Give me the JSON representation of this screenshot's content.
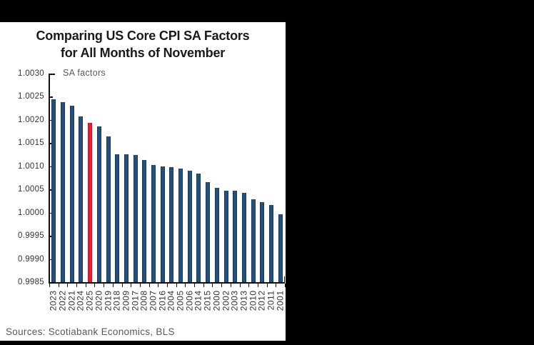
{
  "header": {
    "title_line1": "Comparing US Core CPI SA Factors",
    "title_line2": "for All Months of November"
  },
  "chart_data": {
    "type": "bar",
    "title": "Comparing US Core CPI SA Factors for All Months of November",
    "axis_caption": "SA factors",
    "categories": [
      "2023",
      "2022",
      "2021",
      "2024",
      "2025",
      "2020",
      "2019",
      "2018",
      "2009",
      "2017",
      "2008",
      "2007",
      "2016",
      "2004",
      "2005",
      "2006",
      "2014",
      "2015",
      "2000",
      "2002",
      "2003",
      "2013",
      "2010",
      "2012",
      "2011",
      "2001"
    ],
    "values": [
      1.00245,
      1.00238,
      1.0023,
      1.00208,
      1.00194,
      1.00186,
      1.00164,
      1.00126,
      1.00126,
      1.00125,
      1.00114,
      1.00103,
      1.001,
      1.00098,
      1.00095,
      1.00091,
      1.00085,
      1.00065,
      1.00053,
      1.00048,
      1.00048,
      1.00043,
      1.00029,
      1.00022,
      1.00017,
      0.99997
    ],
    "highlight_category": "2025",
    "ylim": [
      0.9985,
      1.003
    ],
    "ytick_labels": [
      "1.0030",
      "1.0025",
      "1.0020",
      "1.0015",
      "1.0010",
      "1.0005",
      "1.0000",
      "0.9995",
      "0.9990",
      "0.9985"
    ],
    "grid": false,
    "legend_position": "none",
    "colors": {
      "bar": "#24507E",
      "bar_edge": "#16365C",
      "highlight": "#EC1B2E",
      "highlight_edge": "#C8102E",
      "axis": "#111111"
    }
  },
  "footer": {
    "sources": "Sources: Scotiabank Economics, BLS"
  }
}
